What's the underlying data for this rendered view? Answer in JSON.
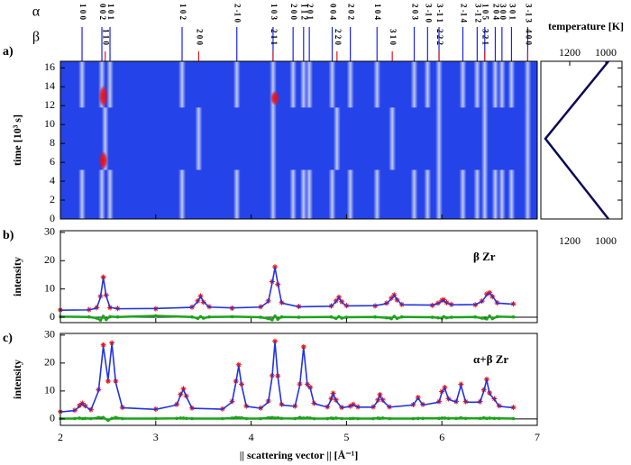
{
  "chart_data": [
    {
      "type": "heatmap",
      "panel_label": "a)",
      "ylabel": "time [10³ s]",
      "xlim": [
        2,
        7
      ],
      "xticks": [
        2,
        3,
        4,
        5,
        6,
        7
      ],
      "ylim": [
        0,
        16.7
      ],
      "yticks": [
        0,
        2,
        4,
        6,
        8,
        10,
        12,
        14,
        16
      ],
      "colors": [
        "#2443e8",
        "#ffffff",
        "#e8101a"
      ],
      "alpha": {
        "symbol": "α",
        "color": "#1a22ee",
        "positions": [
          2.227,
          2.435,
          2.52,
          3.276,
          3.85,
          4.23,
          4.44,
          4.55,
          4.61,
          4.85,
          5.04,
          5.32,
          5.71,
          5.85,
          5.97,
          6.22,
          6.37,
          6.45,
          6.56,
          6.63,
          6.73,
          6.9
        ],
        "labels": [
          "1 0 0",
          "0 0 2",
          "1 0 1",
          "1 0 2",
          "2 -1 0",
          "1 0 3",
          "2 0 0",
          "1 1 2",
          "2 0 1",
          "0 0 4",
          "2 0 2",
          "1 0 4",
          "2 0 3",
          "3 -1 0",
          "3 -1 1",
          "2 -1 4",
          "3 -1 2",
          "1 0 5",
          "2 0 4",
          "3 0 0",
          "3 0 1",
          "3 -1 3"
        ],
        "time": [
          [
            0,
            5.2
          ],
          [
            11.8,
            16.7
          ]
        ]
      },
      "beta": {
        "symbol": "β",
        "color": "#e01818",
        "positions": [
          2.47,
          3.45,
          4.23,
          4.9,
          5.48,
          5.97,
          6.45,
          6.9
        ],
        "labels": [
          "1 1 0",
          "2 0 0",
          "2 1 1",
          "2 2 0",
          "3 1 0",
          "2 2 2",
          "3 2 1",
          "4 0 0"
        ],
        "time": [
          [
            5.2,
            11.8
          ]
        ]
      },
      "hot_spots": [
        {
          "x": 2.45,
          "time": [
            5.2,
            7.2
          ]
        },
        {
          "x": 2.45,
          "time": [
            11.8,
            14.2
          ]
        },
        {
          "x": 4.25,
          "time": [
            12,
            13.6
          ]
        }
      ]
    },
    {
      "type": "line",
      "title": "temperature [K]",
      "color": "#0a0a55",
      "xlim": [
        1360,
        910
      ],
      "xticks": [
        1200,
        1000
      ],
      "ylim": [
        0,
        16.7
      ],
      "yticks": [
        0,
        2,
        4,
        6,
        8,
        10,
        12,
        14,
        16
      ],
      "time": [
        0,
        8.5,
        16.7
      ],
      "values": [
        985,
        1335,
        985
      ]
    },
    {
      "type": "profile",
      "panel_label": "b)",
      "annotation": "β Zr",
      "ylabel": "intensity",
      "xlim": [
        2,
        7
      ],
      "xticks": [
        2,
        3,
        4,
        5,
        6,
        7
      ],
      "ylim": [
        -1.9,
        30.6
      ],
      "yticks": [
        0,
        10,
        20,
        30
      ],
      "x": [
        2.0,
        2.3,
        2.38,
        2.42,
        2.45,
        2.48,
        2.52,
        2.6,
        3.0,
        3.38,
        3.44,
        3.47,
        3.5,
        3.56,
        3.8,
        4.1,
        4.18,
        4.22,
        4.25,
        4.28,
        4.32,
        4.5,
        4.84,
        4.89,
        4.92,
        4.95,
        5.0,
        5.3,
        5.42,
        5.47,
        5.5,
        5.53,
        5.58,
        5.9,
        5.96,
        6.0,
        6.02,
        6.05,
        6.1,
        6.35,
        6.42,
        6.47,
        6.5,
        6.53,
        6.58,
        6.75
      ],
      "series": [
        {
          "color": "#ee1111",
          "marker": "star",
          "values": [
            2.6,
            2.7,
            3.4,
            7.4,
            14.2,
            7.8,
            3.4,
            3.1,
            3.0,
            3.6,
            5.8,
            7.5,
            5.3,
            3.7,
            3.2,
            3.7,
            5.8,
            12.6,
            17.8,
            11.6,
            5.2,
            3.8,
            4.0,
            5.8,
            7.1,
            5.5,
            4.1,
            4.0,
            5.0,
            6.8,
            7.9,
            6.1,
            4.5,
            4.2,
            5.0,
            6.0,
            6.2,
            5.2,
            4.5,
            4.4,
            5.7,
            8.2,
            8.7,
            7.3,
            5.1,
            4.7
          ]
        },
        {
          "color": "#2233dd",
          "marker": "line",
          "values": [
            2.5,
            2.6,
            3.2,
            7,
            14,
            7.5,
            3.5,
            3.0,
            3.1,
            3.5,
            5.5,
            7.3,
            5.5,
            3.6,
            3.3,
            3.6,
            5.5,
            12,
            17.5,
            12,
            5,
            3.7,
            3.9,
            5.5,
            7,
            5.3,
            4,
            4.1,
            4.8,
            6.5,
            7.8,
            6.3,
            4.4,
            4.3,
            4.8,
            5.8,
            6,
            5,
            4.4,
            4.5,
            5.5,
            7.8,
            8.5,
            7.5,
            5,
            4.6
          ]
        },
        {
          "color": "#1aa31a",
          "marker": "circle",
          "values": [
            0.2,
            0.1,
            -0.3,
            -1,
            0.3,
            -0.8,
            0.2,
            0.1,
            0.5,
            0.1,
            -0.4,
            0.2,
            -0.3,
            0.1,
            0.2,
            0,
            -0.5,
            -0.9,
            0.4,
            -0.7,
            0.1,
            0,
            0.1,
            -0.4,
            0.2,
            -0.3,
            0,
            0.1,
            -0.2,
            -0.5,
            0.3,
            -0.4,
            0.1,
            0,
            -0.2,
            -0.3,
            0.2,
            -0.2,
            0,
            0.1,
            -0.3,
            -0.6,
            0.4,
            -0.5,
            0.2,
            0.1
          ]
        }
      ]
    },
    {
      "type": "profile",
      "panel_label": "c)",
      "annotation": "α+β Zr",
      "ylabel": "intensity",
      "xlabel": "|| scattering vector || [Å⁻¹]",
      "xlim": [
        2,
        7
      ],
      "xticks": [
        2,
        3,
        4,
        5,
        6,
        7
      ],
      "ylim": [
        -2.3,
        30.6
      ],
      "yticks": [
        0,
        10,
        20,
        30
      ],
      "x": [
        2.0,
        2.15,
        2.2,
        2.23,
        2.26,
        2.32,
        2.4,
        2.45,
        2.5,
        2.54,
        2.58,
        2.65,
        3.0,
        3.22,
        3.26,
        3.29,
        3.32,
        3.38,
        3.7,
        3.8,
        3.84,
        3.87,
        3.9,
        3.95,
        4.1,
        4.18,
        4.22,
        4.25,
        4.28,
        4.32,
        4.46,
        4.51,
        4.55,
        4.59,
        4.62,
        4.66,
        4.8,
        4.84,
        4.86,
        4.89,
        4.95,
        5.04,
        5.07,
        5.12,
        5.28,
        5.33,
        5.35,
        5.38,
        5.45,
        5.7,
        5.75,
        5.8,
        5.97,
        6.0,
        6.03,
        6.07,
        6.15,
        6.2,
        6.25,
        6.4,
        6.44,
        6.47,
        6.5,
        6.55,
        6.6,
        6.75
      ],
      "series": [
        {
          "color": "#ee1111",
          "marker": "star",
          "values": [
            2.6,
            3.1,
            4.8,
            5.6,
            4.7,
            3.3,
            10.5,
            26.5,
            13.5,
            27.2,
            13.5,
            4.1,
            3.5,
            5.2,
            8.8,
            10.8,
            8.2,
            3.9,
            3.6,
            6.3,
            13.5,
            19.4,
            12.4,
            4.6,
            3.9,
            6.4,
            15.5,
            27.8,
            15.4,
            5.2,
            4.6,
            12.5,
            25.8,
            12.4,
            11.3,
            5.6,
            4.3,
            7.3,
            9.2,
            6.8,
            4.1,
            4.6,
            5.2,
            4.3,
            4.3,
            6.8,
            8.7,
            6.8,
            4.3,
            5.1,
            7.7,
            5.2,
            6.2,
            9.8,
            11.3,
            7.2,
            6.2,
            12.4,
            6.2,
            6.2,
            10.4,
            14.2,
            9.3,
            7.2,
            4.7,
            4.1
          ]
        },
        {
          "color": "#2233dd",
          "marker": "line",
          "values": [
            2.5,
            3,
            4.5,
            5.5,
            4.5,
            3.2,
            10,
            26,
            14,
            27,
            13,
            4,
            3.4,
            5,
            8.5,
            10.5,
            8,
            3.8,
            3.5,
            6,
            13,
            19,
            12,
            4.5,
            3.8,
            6,
            15,
            27.5,
            15,
            5,
            4.5,
            12,
            25.5,
            12,
            11,
            5.5,
            4.2,
            7,
            9,
            6.5,
            4,
            4.5,
            5,
            4.2,
            4.2,
            6.5,
            8.5,
            6.5,
            4.2,
            5,
            7.5,
            5,
            6,
            9.5,
            11,
            7,
            6,
            12,
            6,
            6,
            10,
            14,
            9,
            7,
            4.5,
            4
          ]
        },
        {
          "color": "#1aa31a",
          "marker": "circle",
          "values": [
            0.1,
            0.1,
            0.3,
            0.1,
            0.2,
            0.1,
            0.5,
            0.5,
            -0.5,
            0.2,
            0.5,
            0.1,
            0.1,
            0.2,
            0.3,
            0.3,
            0.2,
            0.1,
            0.1,
            0.3,
            0.5,
            0.4,
            0.4,
            0.1,
            0.1,
            0.4,
            0.5,
            0.3,
            0.4,
            0.2,
            0.1,
            0.5,
            0.3,
            0.4,
            0.3,
            0.1,
            0.1,
            0.3,
            0.2,
            0.3,
            0.1,
            0.1,
            0.2,
            0.1,
            0.1,
            0.3,
            0.2,
            0.3,
            0.1,
            0.1,
            0.2,
            0.2,
            0.2,
            0.3,
            0.3,
            0.2,
            0.2,
            0.4,
            0.2,
            0.2,
            0.4,
            0.2,
            0.3,
            0.2,
            0.2,
            0.1
          ]
        }
      ]
    }
  ]
}
